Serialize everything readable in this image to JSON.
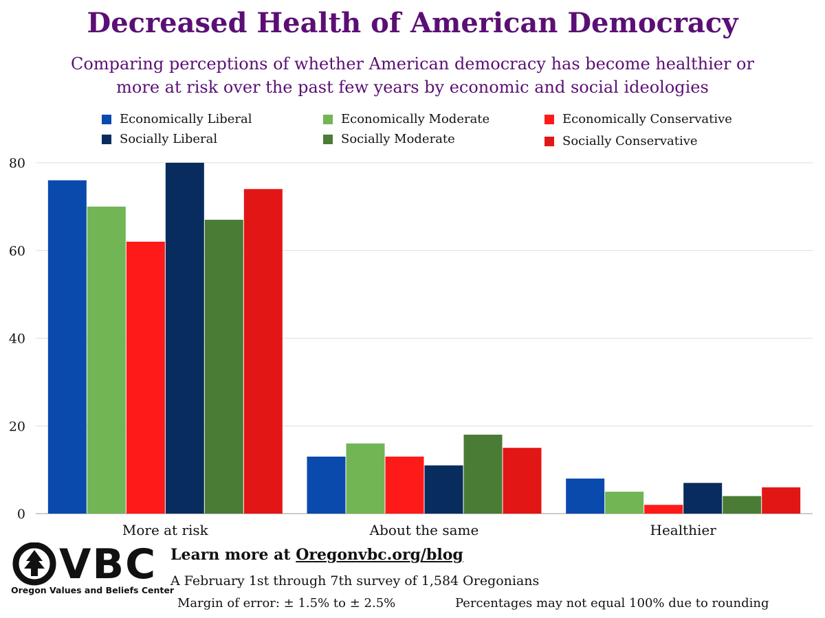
{
  "header": {
    "title": "Decreased Health of American Democracy",
    "subtitle_line1": "Comparing perceptions of whether American democracy has become healthier or",
    "subtitle_line2": "more at risk over the past few years by economic and social ideologies"
  },
  "legend": [
    {
      "label": "Economically Liberal",
      "color": "#0b4aad"
    },
    {
      "label": "Economically Moderate",
      "color": "#72b555"
    },
    {
      "label": "Economically Conservative",
      "color": "#ff1a1a"
    },
    {
      "label": "Socially Liberal",
      "color": "#082c5e"
    },
    {
      "label": "Socially Moderate",
      "color": "#4a7c35"
    },
    {
      "label": "Socially Conservative",
      "color": "#e31616"
    }
  ],
  "chart_data": {
    "type": "bar",
    "categories": [
      "More at risk",
      "About the same",
      "Healthier"
    ],
    "series": [
      {
        "name": "Economically Liberal",
        "color": "#0b4aad",
        "values": [
          76,
          13,
          8
        ]
      },
      {
        "name": "Economically Moderate",
        "color": "#72b555",
        "values": [
          70,
          16,
          5
        ]
      },
      {
        "name": "Economically Conservative",
        "color": "#ff1a1a",
        "values": [
          62,
          13,
          2
        ]
      },
      {
        "name": "Socially Liberal",
        "color": "#082c5e",
        "values": [
          80,
          11,
          7
        ]
      },
      {
        "name": "Socially Moderate",
        "color": "#4a7c35",
        "values": [
          67,
          18,
          4
        ]
      },
      {
        "name": "Socially Conservative",
        "color": "#e31616",
        "values": [
          74,
          15,
          6
        ]
      }
    ],
    "yticks": [
      0,
      20,
      40,
      60,
      80
    ],
    "ylim": [
      0,
      80
    ],
    "grid": true,
    "legend_position": "top"
  },
  "footer": {
    "logo_letters": "VBC",
    "logo_caption": "Oregon Values and Beliefs Center",
    "learn_prefix": "Learn more at ",
    "learn_link": "Oregonvbc.org/blog",
    "survey_note": "A February 1st through 7th survey of 1,584 Oregonians",
    "margin_of_error": "Margin of error: ± 1.5% to ± 2.5%",
    "rounding_note": "Percentages may not equal  100% due to rounding"
  }
}
